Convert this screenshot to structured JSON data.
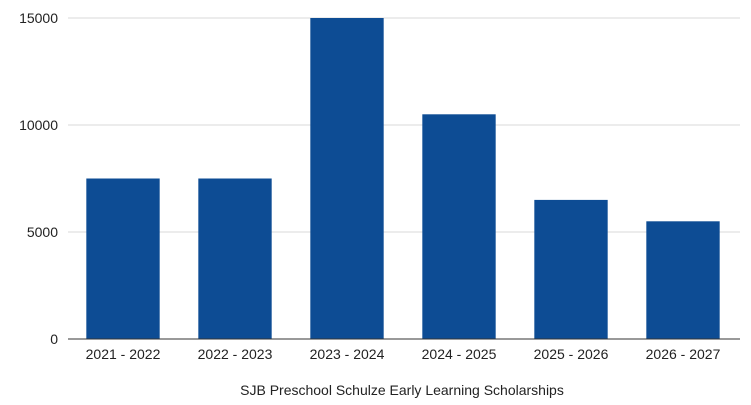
{
  "chart_data": {
    "type": "bar",
    "categories": [
      "2021 - 2022",
      "2022 - 2023",
      "2023 - 2024",
      "2024 - 2025",
      "2025 - 2026",
      "2026 - 2027"
    ],
    "values": [
      7500,
      7500,
      15000,
      10500,
      6500,
      5500
    ],
    "xlabel": "SJB Preschool Schulze Early Learning Scholarships",
    "ylabel": "",
    "ylim": [
      0,
      15000
    ],
    "yticks": [
      0,
      5000,
      10000,
      15000
    ],
    "ytick_labels": [
      "0",
      "5000",
      "10000",
      "15000"
    ],
    "grid": true,
    "legend": "none",
    "bar_color": "#0d4c94"
  }
}
